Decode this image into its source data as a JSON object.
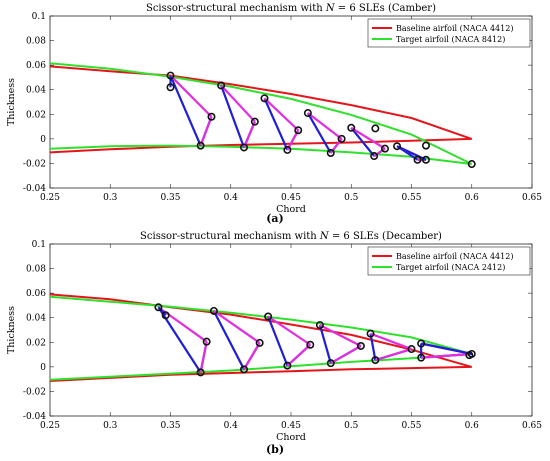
{
  "panels": [
    {
      "label": "(a)"
    },
    {
      "label": "(b)"
    }
  ],
  "colors": {
    "baseline": "#e4151b",
    "target": "#2fe02c",
    "link_blue": "#1f1fd6",
    "link_magenta": "#e42de0",
    "joint": "#111111"
  },
  "chart_data": [
    {
      "type": "line",
      "title_prefix": "Scissor-structural mechanism with ",
      "title_math": "N",
      "title_suffix": " = 6 SLEs (Camber)",
      "xlabel": "Chord",
      "ylabel": "Thickness",
      "xlim": [
        0.25,
        0.65
      ],
      "ylim": [
        -0.04,
        0.1
      ],
      "xticks": [
        "0.25",
        "0.3",
        "0.35",
        "0.4",
        "0.45",
        "0.5",
        "0.55",
        "0.6",
        "0.65"
      ],
      "yticks": [
        "-0.04",
        "-0.02",
        "0",
        "0.02",
        "0.04",
        "0.06",
        "0.08",
        "0.1"
      ],
      "grid": false,
      "legend_position": "top-right",
      "series": [
        {
          "name": "Baseline airfoil (NACA 4412)",
          "color_key": "baseline",
          "upper": [
            [
              0.25,
              0.059
            ],
            [
              0.3,
              0.055
            ],
            [
              0.35,
              0.0515
            ],
            [
              0.4,
              0.0445
            ],
            [
              0.45,
              0.0365
            ],
            [
              0.5,
              0.0275
            ],
            [
              0.55,
              0.017
            ],
            [
              0.6,
              0.0
            ]
          ],
          "lower": [
            [
              0.25,
              -0.011
            ],
            [
              0.3,
              -0.0085
            ],
            [
              0.35,
              -0.0065
            ],
            [
              0.4,
              -0.005
            ],
            [
              0.45,
              -0.004
            ],
            [
              0.5,
              -0.003
            ],
            [
              0.55,
              -0.0015
            ],
            [
              0.6,
              0.0
            ]
          ]
        },
        {
          "name": "Target airfoil (NACA 8412)",
          "color_key": "target",
          "upper": [
            [
              0.25,
              0.0615
            ],
            [
              0.3,
              0.057
            ],
            [
              0.35,
              0.0505
            ],
            [
              0.4,
              0.0425
            ],
            [
              0.45,
              0.0325
            ],
            [
              0.5,
              0.0195
            ],
            [
              0.55,
              0.0035
            ],
            [
              0.6,
              -0.0205
            ]
          ],
          "lower": [
            [
              0.25,
              -0.008
            ],
            [
              0.3,
              -0.006
            ],
            [
              0.35,
              -0.0055
            ],
            [
              0.4,
              -0.0065
            ],
            [
              0.45,
              -0.008
            ],
            [
              0.5,
              -0.011
            ],
            [
              0.55,
              -0.0145
            ],
            [
              0.6,
              -0.0205
            ]
          ]
        }
      ],
      "mechanism": {
        "upper_joints": [
          [
            0.35,
            0.0515
          ],
          [
            0.392,
            0.0435
          ],
          [
            0.428,
            0.033
          ],
          [
            0.464,
            0.021
          ],
          [
            0.5,
            0.009
          ],
          [
            0.538,
            -0.006
          ]
        ],
        "mid_joints": [
          [
            0.35,
            0.042
          ],
          [
            0.384,
            0.018
          ],
          [
            0.42,
            0.014
          ],
          [
            0.456,
            0.007
          ],
          [
            0.492,
            0.0
          ],
          [
            0.528,
            -0.008
          ],
          [
            0.562,
            -0.017
          ]
        ],
        "lower_joints": [
          [
            0.375,
            -0.0055
          ],
          [
            0.411,
            -0.007
          ],
          [
            0.447,
            -0.009
          ],
          [
            0.483,
            -0.0115
          ],
          [
            0.519,
            -0.014
          ],
          [
            0.555,
            -0.017
          ]
        ],
        "extra_joints": [
          [
            0.52,
            0.0085
          ],
          [
            0.562,
            -0.0055
          ],
          [
            0.6,
            -0.0205
          ]
        ]
      }
    },
    {
      "type": "line",
      "title_prefix": "Scissor-structural mechanism with ",
      "title_math": "N",
      "title_suffix": " = 6 SLEs (Decamber)",
      "xlabel": "Chord",
      "ylabel": "Thickness",
      "xlim": [
        0.25,
        0.65
      ],
      "ylim": [
        -0.04,
        0.1
      ],
      "xticks": [
        "0.25",
        "0.3",
        "0.35",
        "0.4",
        "0.45",
        "0.5",
        "0.55",
        "0.6",
        "0.65"
      ],
      "yticks": [
        "-0.04",
        "-0.02",
        "0",
        "0.02",
        "0.04",
        "0.06",
        "0.08",
        "0.1"
      ],
      "grid": false,
      "legend_position": "top-right",
      "series": [
        {
          "name": "Baseline airfoil (NACA 4412)",
          "color_key": "baseline",
          "upper": [
            [
              0.25,
              0.059
            ],
            [
              0.3,
              0.055
            ],
            [
              0.35,
              0.0485
            ],
            [
              0.4,
              0.0425
            ],
            [
              0.45,
              0.0345
            ],
            [
              0.5,
              0.026
            ],
            [
              0.55,
              0.014
            ],
            [
              0.6,
              0.0
            ]
          ],
          "lower": [
            [
              0.25,
              -0.0115
            ],
            [
              0.3,
              -0.009
            ],
            [
              0.35,
              -0.0065
            ],
            [
              0.4,
              -0.005
            ],
            [
              0.45,
              -0.0035
            ],
            [
              0.5,
              -0.002
            ],
            [
              0.55,
              -0.001
            ],
            [
              0.6,
              0.0
            ]
          ]
        },
        {
          "name": "Target airfoil (NACA 2412)",
          "color_key": "target",
          "upper": [
            [
              0.25,
              0.057
            ],
            [
              0.3,
              0.053
            ],
            [
              0.35,
              0.049
            ],
            [
              0.4,
              0.044
            ],
            [
              0.45,
              0.0385
            ],
            [
              0.5,
              0.032
            ],
            [
              0.55,
              0.024
            ],
            [
              0.6,
              0.0105
            ]
          ],
          "lower": [
            [
              0.25,
              -0.0105
            ],
            [
              0.3,
              -0.008
            ],
            [
              0.35,
              -0.0055
            ],
            [
              0.4,
              -0.003
            ],
            [
              0.45,
              0.0005
            ],
            [
              0.5,
              0.004
            ],
            [
              0.55,
              0.007
            ],
            [
              0.6,
              0.0105
            ]
          ]
        }
      ],
      "mechanism": {
        "upper_joints": [
          [
            0.34,
            0.0485
          ],
          [
            0.386,
            0.0455
          ],
          [
            0.431,
            0.041
          ],
          [
            0.474,
            0.034
          ],
          [
            0.516,
            0.027
          ],
          [
            0.558,
            0.019
          ]
        ],
        "mid_joints": [
          [
            0.346,
            0.042
          ],
          [
            0.38,
            0.0205
          ],
          [
            0.424,
            0.0195
          ],
          [
            0.466,
            0.018
          ],
          [
            0.508,
            0.017
          ],
          [
            0.55,
            0.0145
          ],
          [
            0.6,
            0.0105
          ]
        ],
        "lower_joints": [
          [
            0.375,
            -0.0045
          ],
          [
            0.411,
            -0.002
          ],
          [
            0.447,
            0.001
          ],
          [
            0.483,
            0.003
          ],
          [
            0.52,
            0.0055
          ],
          [
            0.558,
            0.0075
          ]
        ],
        "extra_joints": [
          [
            0.598,
            0.0095
          ]
        ]
      }
    }
  ]
}
